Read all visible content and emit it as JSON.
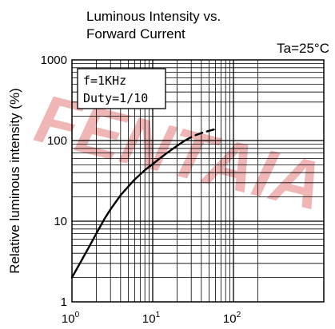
{
  "chart_data": {
    "type": "line",
    "title_lines": [
      "Luminous Intensity vs.",
      "Forward Current"
    ],
    "condition": "Ta=25°C",
    "ylabel": "Relative luminous intensity  (%)",
    "xlabel": "",
    "x_scale": "log",
    "y_scale": "log",
    "xlim": [
      1,
      300
    ],
    "ylim": [
      1,
      1000
    ],
    "x_ticks": [
      {
        "base": "10",
        "exp": "0",
        "value": 1
      },
      {
        "base": "10",
        "exp": "1",
        "value": 10
      },
      {
        "base": "10",
        "exp": "2",
        "value": 100
      }
    ],
    "y_ticks": [
      {
        "label": "1",
        "value": 1
      },
      {
        "label": "10",
        "value": 10
      },
      {
        "label": "100",
        "value": 100
      },
      {
        "label": "1000",
        "value": 1000
      }
    ],
    "grid": true,
    "legend_box": [
      "f=1KHz",
      "Duty=1/10"
    ],
    "series": [
      {
        "style": "solid",
        "x": [
          1,
          1.3,
          1.7,
          2,
          2.5,
          3,
          4,
          5,
          6,
          7,
          8,
          10,
          12,
          15,
          20,
          25
        ],
        "y": [
          2,
          3.2,
          5.2,
          7,
          10.5,
          14,
          21,
          27,
          33,
          38,
          43,
          51,
          59,
          70,
          86,
          100
        ]
      },
      {
        "style": "dashed",
        "x": [
          25,
          30,
          35,
          40,
          50,
          60
        ],
        "y": [
          100,
          110,
          118,
          124,
          132,
          139
        ]
      }
    ],
    "watermark": "FENTAIA",
    "colors": {
      "axis": "#000000",
      "grid": "#000000",
      "watermark": "#e06060"
    }
  }
}
